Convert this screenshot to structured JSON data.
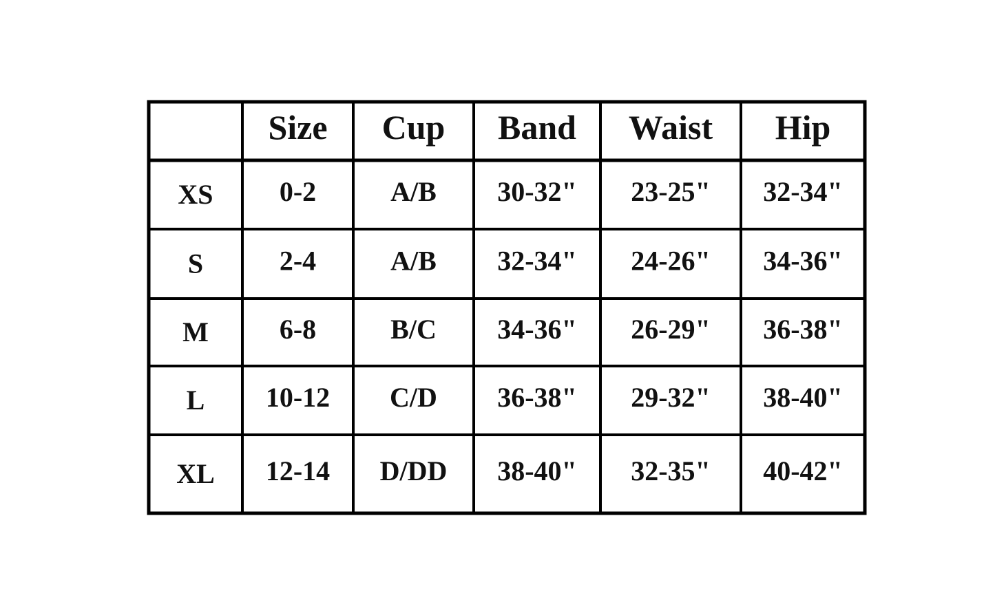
{
  "table": {
    "columns": [
      "Size",
      "Cup",
      "Band",
      "Waist",
      "Hip"
    ],
    "rows": [
      {
        "label": "XS",
        "cells": [
          "0-2",
          "A/B",
          "30-32\"",
          "23-25\"",
          "32-34\""
        ]
      },
      {
        "label": "S",
        "cells": [
          "2-4",
          "A/B",
          "32-34\"",
          "24-26\"",
          "34-36\""
        ]
      },
      {
        "label": "M",
        "cells": [
          "6-8",
          "B/C",
          "34-36\"",
          "26-29\"",
          "36-38\""
        ]
      },
      {
        "label": "L",
        "cells": [
          "10-12",
          "C/D",
          "36-38\"",
          "29-32\"",
          "38-40\""
        ]
      },
      {
        "label": "XL",
        "cells": [
          "12-14",
          "D/DD",
          "38-40\"",
          "32-35\"",
          "40-42\""
        ]
      }
    ]
  }
}
